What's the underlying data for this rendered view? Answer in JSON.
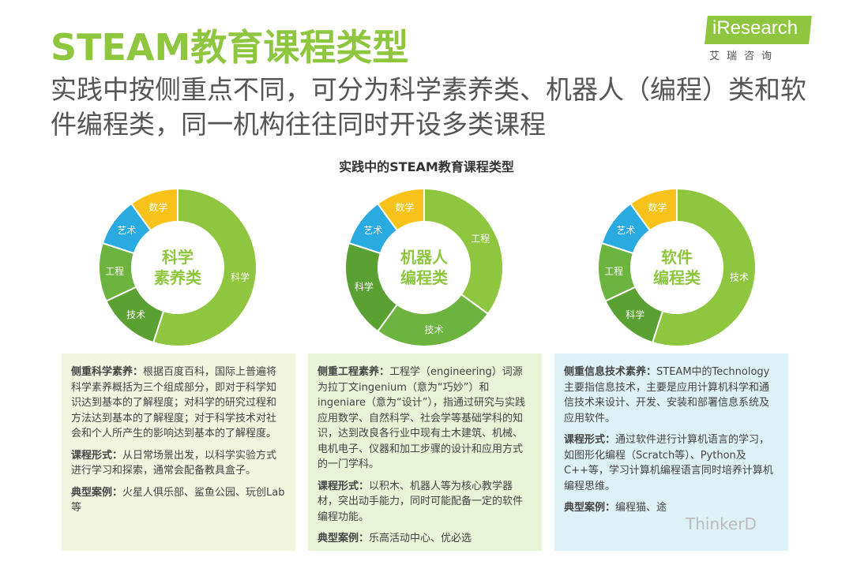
{
  "title": "STEAM教育课程类型",
  "subtitle": "实践中按侧重点不同，可分为科学素养类、机器人（编程）类和软件编程类，同一机构往往同时开设多类课程",
  "logo": {
    "brand": "iResearch",
    "cn": "艾瑞咨询"
  },
  "chart_title": "实践中的STEAM教育课程类型",
  "colors": {
    "green": "#8ec63f",
    "mid_green": "#6db33f",
    "dark_green": "#5aa032",
    "light_green": "#9acd32",
    "blue": "#29abe2",
    "yellow": "#f7c21a"
  },
  "chart_data": [
    {
      "type": "pie",
      "center": [
        "科学",
        "素养类"
      ],
      "segments": [
        {
          "label": "科学",
          "value": 55,
          "color": "#8ec63f"
        },
        {
          "label": "技术",
          "value": 13,
          "color": "#5aa032"
        },
        {
          "label": "工程",
          "value": 12,
          "color": "#6db33f"
        },
        {
          "label": "艺术",
          "value": 10,
          "color": "#29abe2"
        },
        {
          "label": "数学",
          "value": 10,
          "color": "#f7c21a"
        }
      ]
    },
    {
      "type": "pie",
      "center": [
        "机器人",
        "编程类"
      ],
      "segments": [
        {
          "label": "工程",
          "value": 35,
          "color": "#8ec63f"
        },
        {
          "label": "技术",
          "value": 25,
          "color": "#6db33f"
        },
        {
          "label": "科学",
          "value": 20,
          "color": "#5aa032"
        },
        {
          "label": "艺术",
          "value": 10,
          "color": "#29abe2"
        },
        {
          "label": "数学",
          "value": 10,
          "color": "#f7c21a"
        }
      ]
    },
    {
      "type": "pie",
      "center": [
        "软件",
        "编程类"
      ],
      "segments": [
        {
          "label": "技术",
          "value": 55,
          "color": "#8ec63f"
        },
        {
          "label": "科学",
          "value": 13,
          "color": "#5aa032"
        },
        {
          "label": "工程",
          "value": 12,
          "color": "#6db33f"
        },
        {
          "label": "艺术",
          "value": 10,
          "color": "#29abe2"
        },
        {
          "label": "数学",
          "value": 10,
          "color": "#f7c21a"
        }
      ]
    }
  ],
  "panels": [
    {
      "focus_label": "侧重科学素养：",
      "focus_text": "根据百度百科，国际上普遍将科学素养概括为三个组成部分，即对于科学知识达到基本的了解程度；对科学的研究过程和方法达到基本的了解程度；对于科学技术对社会和个人所产生的影响达到基本的了解程度。",
      "form_label": "课程形式：",
      "form_text": "从日常场景出发，以科学实验方式进行学习和探索，通常会配备教具盒子。",
      "case_label": "典型案例：",
      "case_text": "火星人俱乐部、鲨鱼公园、玩创Lab等"
    },
    {
      "focus_label": "侧重工程素养：",
      "focus_text": "工程学（engineering）词源为拉丁文ingenium（意为“巧妙”）和ingeniare（意为“设计”），指通过研究与实践应用数学、自然科学、社会学等基础学科的知识，达到改良各行业中现有土木建筑、机械、电机电子、仪器和加工步骤的设计和应用方式的一门学科。",
      "form_label": "课程形式：",
      "form_text": "以积木、机器人等为核心教学器材，突出动手能力，同时可能配备一定的软件编程功能。",
      "case_label": "典型案例：",
      "case_text": "乐高活动中心、优必选"
    },
    {
      "focus_label": "侧重信息技术素养：",
      "focus_text": "STEAM中的Technology主要指信息技术，主要是应用计算机科学和通信技术来设计、开发、安装和部署信息系统及应用软件。",
      "form_label": "课程形式：",
      "form_text": "通过软件进行计算机语言的学习，如图形化编程（Scratch等）、Python及C++等，学习计算机编程语言同时培养计算机编程思维。",
      "case_label": "典型案例：",
      "case_text": "编程猫、途"
    }
  ],
  "watermark": "ThinkerD"
}
